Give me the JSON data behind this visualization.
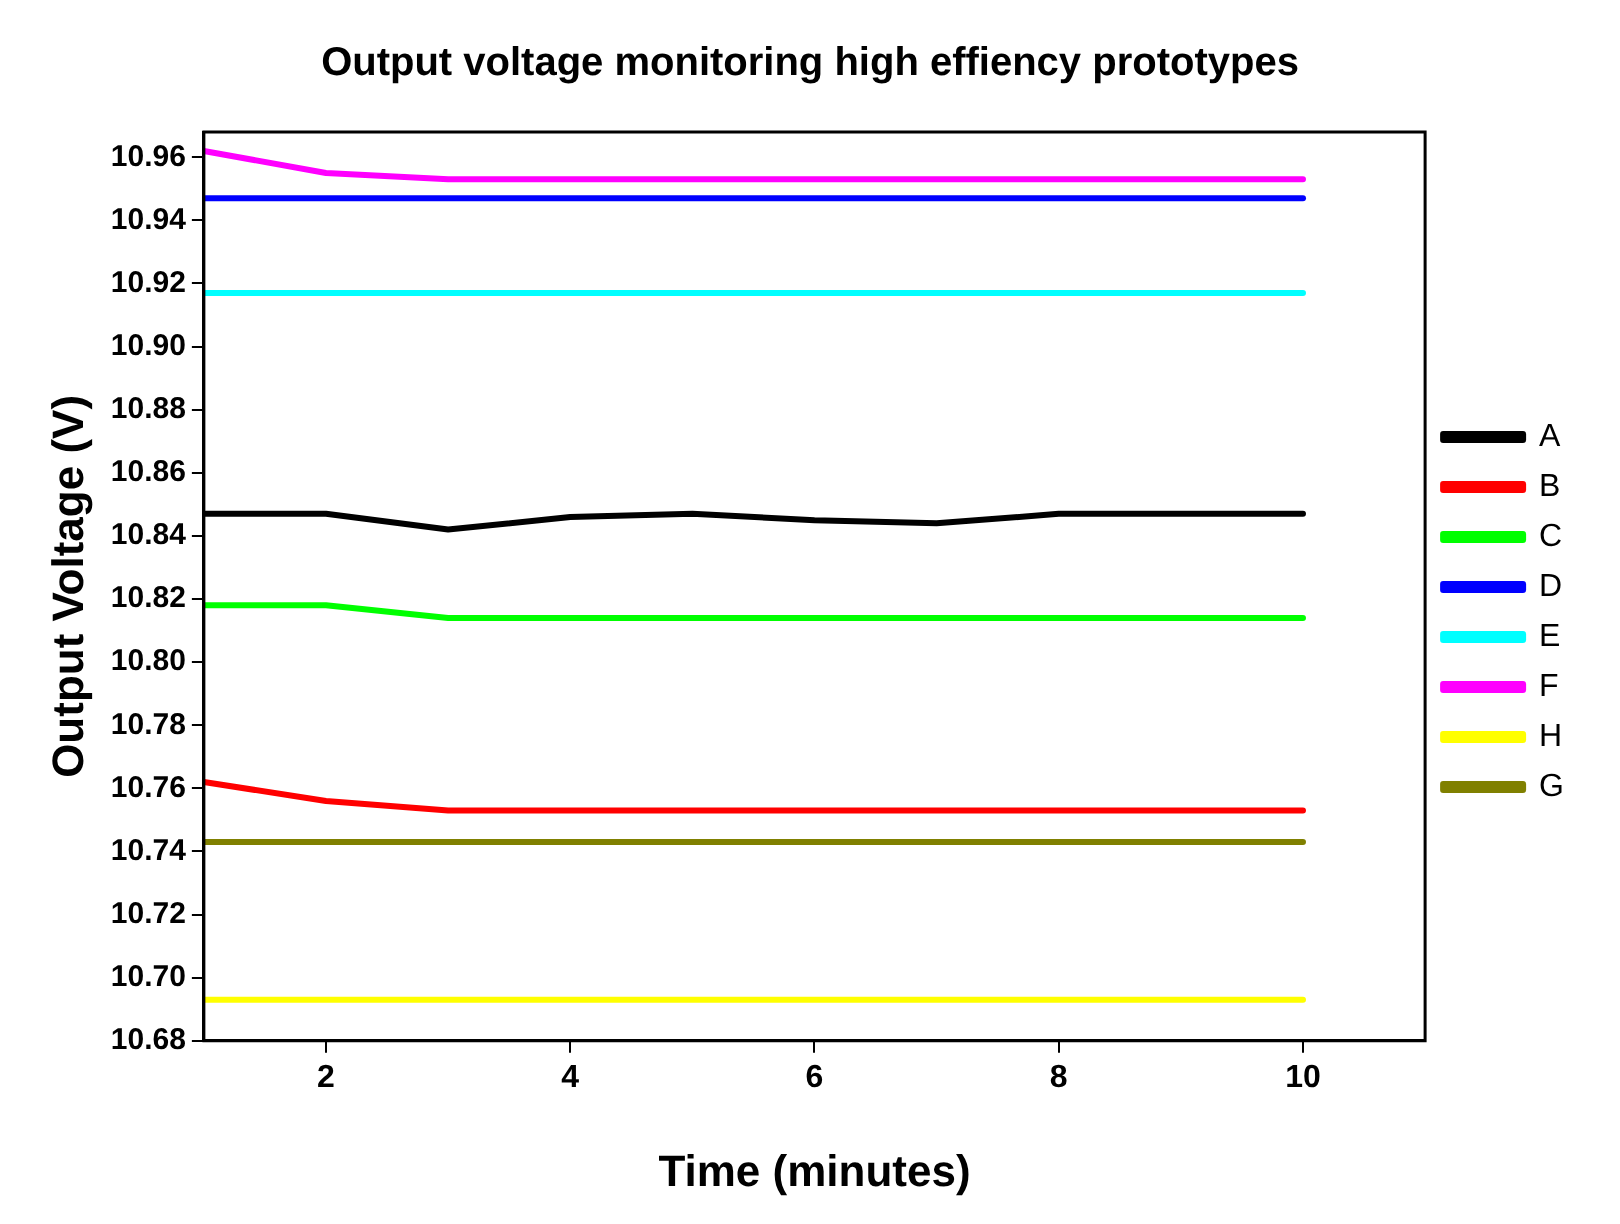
{
  "chart_data": {
    "type": "line",
    "title": "Output voltage monitoring high effiency prototypes",
    "xlabel": "Time (minutes)",
    "ylabel": "Output Voltage (V)",
    "x": [
      1,
      2,
      3,
      4,
      5,
      6,
      7,
      8,
      9,
      10
    ],
    "series": [
      {
        "name": "A",
        "color": "#000000",
        "values": [
          10.847,
          10.847,
          10.842,
          10.846,
          10.847,
          10.845,
          10.844,
          10.847,
          10.847,
          10.847
        ]
      },
      {
        "name": "B",
        "color": "#ff0000",
        "values": [
          10.762,
          10.756,
          10.753,
          10.753,
          10.753,
          10.753,
          10.753,
          10.753,
          10.753,
          10.753
        ]
      },
      {
        "name": "C",
        "color": "#00ff00",
        "values": [
          10.818,
          10.818,
          10.814,
          10.814,
          10.814,
          10.814,
          10.814,
          10.814,
          10.814,
          10.814
        ]
      },
      {
        "name": "D",
        "color": "#0000ff",
        "values": [
          10.947,
          10.947,
          10.947,
          10.947,
          10.947,
          10.947,
          10.947,
          10.947,
          10.947,
          10.947
        ]
      },
      {
        "name": "E",
        "color": "#00ffff",
        "values": [
          10.917,
          10.917,
          10.917,
          10.917,
          10.917,
          10.917,
          10.917,
          10.917,
          10.917,
          10.917
        ]
      },
      {
        "name": "F",
        "color": "#ff00ff",
        "values": [
          10.962,
          10.955,
          10.953,
          10.953,
          10.953,
          10.953,
          10.953,
          10.953,
          10.953,
          10.953
        ]
      },
      {
        "name": "H",
        "color": "#ffff00",
        "values": [
          10.693,
          10.693,
          10.693,
          10.693,
          10.693,
          10.693,
          10.693,
          10.693,
          10.693,
          10.693
        ]
      },
      {
        "name": "G",
        "color": "#808000",
        "values": [
          10.743,
          10.743,
          10.743,
          10.743,
          10.743,
          10.743,
          10.743,
          10.743,
          10.743,
          10.743
        ]
      }
    ],
    "xlim": [
      1,
      11
    ],
    "xticks": [
      2,
      4,
      6,
      8,
      10
    ],
    "ylim": [
      10.68,
      10.968
    ],
    "yticks": [
      10.68,
      {
        "value": 10.7,
        "label": "10.70"
      },
      10.72,
      10.74,
      10.76,
      10.78,
      {
        "value": 10.8,
        "label": "10.80"
      },
      10.82,
      10.84,
      10.86,
      10.88,
      {
        "value": 10.9,
        "label": "10.90"
      },
      10.92,
      10.94,
      10.96
    ],
    "grid": false,
    "legend": "right",
    "marker": "none",
    "line_style": "solid"
  }
}
